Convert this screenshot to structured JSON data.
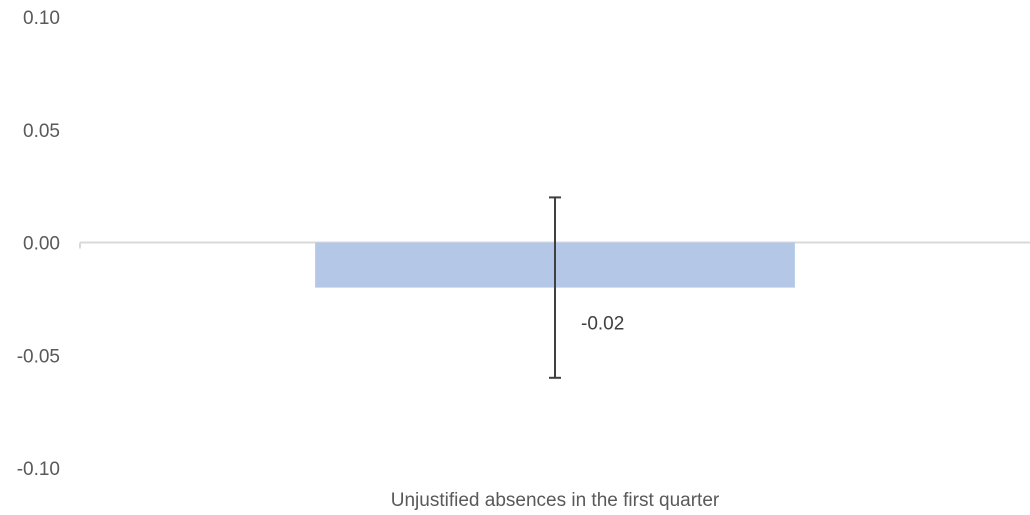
{
  "chart_data": {
    "type": "bar",
    "title": "",
    "xlabel": "",
    "ylabel": "",
    "categories": [
      "Unjustified absences in the first quarter"
    ],
    "values": [
      -0.02
    ],
    "data_labels": [
      "-0.02"
    ],
    "error_bars": [
      {
        "low": -0.06,
        "high": 0.02
      }
    ],
    "ylim": [
      -0.1,
      0.1
    ],
    "yticks": [
      0.1,
      0.05,
      0.0,
      -0.05,
      -0.1
    ],
    "ytick_labels": [
      "0.10",
      "0.05",
      "0.00",
      "-0.05",
      "-0.10"
    ],
    "grid": false,
    "legend": "none",
    "colors": {
      "bar": "#b4c7e7",
      "axis": "#d9d9d9",
      "error_bar": "#404040",
      "text": "#595959"
    }
  }
}
